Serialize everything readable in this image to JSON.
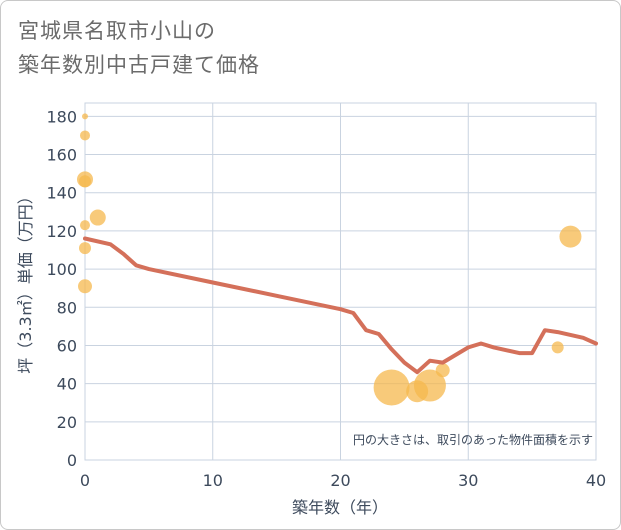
{
  "title_line1": "宮城県名取市小山の",
  "title_line2": "築年数別中古戸建て価格",
  "chart_data": {
    "type": "scatter",
    "title": "宮城県名取市小山の 築年数別中古戸建て価格",
    "xlabel": "築年数（年）",
    "ylabel": "坪（3.3㎡）単価（万円）",
    "xlim": [
      0,
      40
    ],
    "ylim": [
      0,
      187
    ],
    "xticks": [
      0,
      10,
      20,
      30,
      40
    ],
    "yticks": [
      0,
      20,
      40,
      60,
      80,
      100,
      120,
      140,
      160,
      180
    ],
    "grid": true,
    "note": "円の大きさは、取引のあった物件面積を示す",
    "colors": {
      "bubble": "#f5b84e",
      "line": "#d4705a",
      "grid": "#c9d3e0",
      "text": "#3d4a5c"
    },
    "bubbles": [
      {
        "x": 0,
        "y": 180,
        "size": 3
      },
      {
        "x": 0,
        "y": 170,
        "size": 5
      },
      {
        "x": 0,
        "y": 147,
        "size": 8
      },
      {
        "x": 0,
        "y": 146,
        "size": 6
      },
      {
        "x": 1,
        "y": 127,
        "size": 8
      },
      {
        "x": 0,
        "y": 123,
        "size": 5
      },
      {
        "x": 0,
        "y": 111,
        "size": 6
      },
      {
        "x": 0,
        "y": 91,
        "size": 7
      },
      {
        "x": 24,
        "y": 38,
        "size": 18
      },
      {
        "x": 26,
        "y": 36,
        "size": 11
      },
      {
        "x": 27,
        "y": 39,
        "size": 16
      },
      {
        "x": 28,
        "y": 47,
        "size": 7
      },
      {
        "x": 37,
        "y": 59,
        "size": 6
      },
      {
        "x": 38,
        "y": 117,
        "size": 11
      }
    ],
    "trend": {
      "x": [
        0,
        2,
        3,
        4,
        5,
        10,
        15,
        20,
        21,
        22,
        23,
        24,
        25,
        26,
        27,
        28,
        30,
        31,
        32,
        34,
        35,
        36,
        37,
        39,
        40
      ],
      "y": [
        116,
        113,
        108,
        102,
        100,
        93,
        86,
        79,
        77,
        68,
        66,
        58,
        51,
        46,
        52,
        51,
        59,
        61,
        59,
        56,
        56,
        68,
        67,
        64,
        61
      ]
    }
  }
}
